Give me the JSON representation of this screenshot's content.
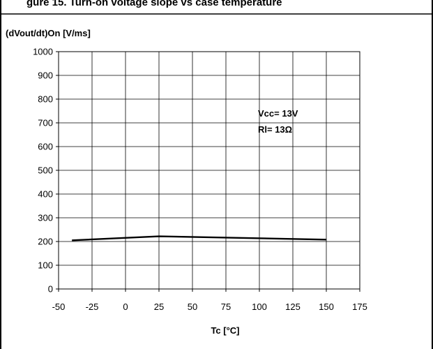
{
  "header_fragment": "gure 15. Turn-on voltage slope vs case temperature",
  "chart_data": {
    "type": "line",
    "title": "",
    "xlabel": "Tc [°C]",
    "ylabel": "(dVout/dt)On [V/ms]",
    "xlim": [
      -50,
      175
    ],
    "ylim": [
      0,
      1000
    ],
    "xticks": [
      -50,
      -25,
      0,
      25,
      50,
      75,
      100,
      125,
      150,
      175
    ],
    "yticks": [
      0,
      100,
      200,
      300,
      400,
      500,
      600,
      700,
      800,
      900,
      1000
    ],
    "grid": true,
    "annotation": [
      "Vcc= 13V",
      "Rl= 13Ω"
    ],
    "series": [
      {
        "x": [
          -40,
          25,
          150
        ],
        "y": [
          205,
          222,
          208
        ]
      }
    ]
  }
}
